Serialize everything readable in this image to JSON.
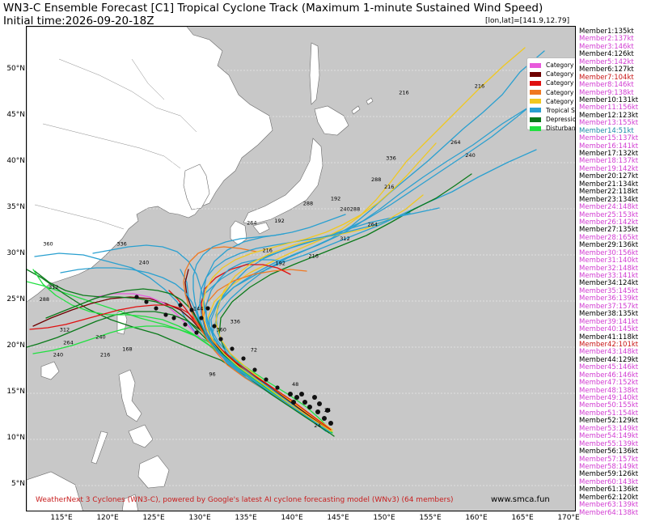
{
  "header": {
    "title": "WN3-C Ensemble Forecast [C1] Tropical Cyclone Track (Maximum 1-minute Sustained Wind Speed)",
    "initial_time": "Initial time:2026-09-20-18Z",
    "lonlat_readout": "[lon,lat]=[141.9,12.79]"
  },
  "axes": {
    "lat_labels": [
      "50°N",
      "45°N",
      "40°N",
      "35°N",
      "30°N",
      "25°N",
      "20°N",
      "15°N",
      "10°N",
      "5°N"
    ],
    "lon_labels": [
      "115°E",
      "120°E",
      "125°E",
      "130°E",
      "135°E",
      "140°E",
      "145°E",
      "150°E",
      "155°E",
      "160°E",
      "165°E",
      "170°E"
    ]
  },
  "legend": [
    {
      "label": "Category 5",
      "color": "#e85adc"
    },
    {
      "label": "Category 4",
      "color": "#6e0000"
    },
    {
      "label": "Category 3",
      "color": "#e01010"
    },
    {
      "label": "Category 2",
      "color": "#f07820"
    },
    {
      "label": "Category 1",
      "color": "#f0c820"
    },
    {
      "label": "Tropical Storm",
      "color": "#2aa0d0"
    },
    {
      "label": "Depression",
      "color": "#0a7a1a"
    },
    {
      "label": "Disturbance",
      "color": "#20e040"
    }
  ],
  "members": [
    {
      "label": "Member1:135kt",
      "color": "#000000"
    },
    {
      "label": "Member2:137kt",
      "color": "#d23cd2"
    },
    {
      "label": "Member3:146kt",
      "color": "#d23cd2"
    },
    {
      "label": "Member4:126kt",
      "color": "#000000"
    },
    {
      "label": "Member5:142kt",
      "color": "#d23cd2"
    },
    {
      "label": "Member6:127kt",
      "color": "#000000"
    },
    {
      "label": "Member7:104kt",
      "color": "#c81414"
    },
    {
      "label": "Member8:146kt",
      "color": "#d23cd2"
    },
    {
      "label": "Member9:138kt",
      "color": "#d23cd2"
    },
    {
      "label": "Member10:131kt",
      "color": "#000000"
    },
    {
      "label": "Member11:156kt",
      "color": "#d23cd2"
    },
    {
      "label": "Member12:123kt",
      "color": "#000000"
    },
    {
      "label": "Member13:155kt",
      "color": "#d23cd2"
    },
    {
      "label": "Member14:51kt",
      "color": "#1a8aa8"
    },
    {
      "label": "Member15:137kt",
      "color": "#d23cd2"
    },
    {
      "label": "Member16:141kt",
      "color": "#d23cd2"
    },
    {
      "label": "Member17:132kt",
      "color": "#000000"
    },
    {
      "label": "Member18:137kt",
      "color": "#d23cd2"
    },
    {
      "label": "Member19:142kt",
      "color": "#d23cd2"
    },
    {
      "label": "Member20:127kt",
      "color": "#000000"
    },
    {
      "label": "Member21:134kt",
      "color": "#000000"
    },
    {
      "label": "Member22:118kt",
      "color": "#000000"
    },
    {
      "label": "Member23:134kt",
      "color": "#000000"
    },
    {
      "label": "Member24:148kt",
      "color": "#d23cd2"
    },
    {
      "label": "Member25:153kt",
      "color": "#d23cd2"
    },
    {
      "label": "Member26:142kt",
      "color": "#d23cd2"
    },
    {
      "label": "Member27:135kt",
      "color": "#000000"
    },
    {
      "label": "Member28:165kt",
      "color": "#d23cd2"
    },
    {
      "label": "Member29:136kt",
      "color": "#000000"
    },
    {
      "label": "Member30:156kt",
      "color": "#d23cd2"
    },
    {
      "label": "Member31:140kt",
      "color": "#d23cd2"
    },
    {
      "label": "Member32:148kt",
      "color": "#d23cd2"
    },
    {
      "label": "Member33:141kt",
      "color": "#d23cd2"
    },
    {
      "label": "Member34:124kt",
      "color": "#000000"
    },
    {
      "label": "Member35:145kt",
      "color": "#d23cd2"
    },
    {
      "label": "Member36:139kt",
      "color": "#d23cd2"
    },
    {
      "label": "Member37:157kt",
      "color": "#d23cd2"
    },
    {
      "label": "Member38:135kt",
      "color": "#000000"
    },
    {
      "label": "Member39:141kt",
      "color": "#d23cd2"
    },
    {
      "label": "Member40:145kt",
      "color": "#d23cd2"
    },
    {
      "label": "Member41:118kt",
      "color": "#000000"
    },
    {
      "label": "Member42:101kt",
      "color": "#c81414"
    },
    {
      "label": "Member43:148kt",
      "color": "#d23cd2"
    },
    {
      "label": "Member44:129kt",
      "color": "#000000"
    },
    {
      "label": "Member45:146kt",
      "color": "#d23cd2"
    },
    {
      "label": "Member46:146kt",
      "color": "#d23cd2"
    },
    {
      "label": "Member47:152kt",
      "color": "#d23cd2"
    },
    {
      "label": "Member48:138kt",
      "color": "#d23cd2"
    },
    {
      "label": "Member49:140kt",
      "color": "#d23cd2"
    },
    {
      "label": "Member50:155kt",
      "color": "#d23cd2"
    },
    {
      "label": "Member51:154kt",
      "color": "#d23cd2"
    },
    {
      "label": "Member52:129kt",
      "color": "#000000"
    },
    {
      "label": "Member53:149kt",
      "color": "#d23cd2"
    },
    {
      "label": "Member54:149kt",
      "color": "#d23cd2"
    },
    {
      "label": "Member55:139kt",
      "color": "#d23cd2"
    },
    {
      "label": "Member56:136kt",
      "color": "#000000"
    },
    {
      "label": "Member57:157kt",
      "color": "#d23cd2"
    },
    {
      "label": "Member58:149kt",
      "color": "#d23cd2"
    },
    {
      "label": "Member59:126kt",
      "color": "#000000"
    },
    {
      "label": "Member60:143kt",
      "color": "#d23cd2"
    },
    {
      "label": "Member61:136kt",
      "color": "#000000"
    },
    {
      "label": "Member62:120kt",
      "color": "#000000"
    },
    {
      "label": "Member63:139kt",
      "color": "#d23cd2"
    },
    {
      "label": "Member64:138kt",
      "color": "#d23cd2"
    }
  ],
  "map": {
    "ocean_color": "#c8c8c8",
    "land_color": "#ffffff",
    "track_labels": [
      {
        "text": "216",
        "lon": 151.6,
        "lat": 47.4
      },
      {
        "text": "216",
        "lon": 159.8,
        "lat": 48.1
      },
      {
        "text": "264",
        "lon": 157.2,
        "lat": 42.0
      },
      {
        "text": "240",
        "lon": 158.8,
        "lat": 40.6
      },
      {
        "text": "336",
        "lon": 150.2,
        "lat": 40.3
      },
      {
        "text": "288",
        "lon": 148.6,
        "lat": 38.0
      },
      {
        "text": "216",
        "lon": 150.0,
        "lat": 37.2
      },
      {
        "text": "264",
        "lon": 148.2,
        "lat": 33.1
      },
      {
        "text": "192",
        "lon": 144.2,
        "lat": 35.9
      },
      {
        "text": "288",
        "lon": 141.2,
        "lat": 35.4
      },
      {
        "text": "240",
        "lon": 145.2,
        "lat": 34.8
      },
      {
        "text": "288",
        "lon": 146.3,
        "lat": 34.8
      },
      {
        "text": "264",
        "lon": 135.1,
        "lat": 33.3
      },
      {
        "text": "192",
        "lon": 138.1,
        "lat": 33.5
      },
      {
        "text": "312",
        "lon": 145.2,
        "lat": 31.6
      },
      {
        "text": "216",
        "lon": 141.8,
        "lat": 29.7
      },
      {
        "text": "192",
        "lon": 138.2,
        "lat": 28.9
      },
      {
        "text": "216",
        "lon": 136.8,
        "lat": 30.3
      },
      {
        "text": "336",
        "lon": 133.3,
        "lat": 22.6
      },
      {
        "text": "360",
        "lon": 131.8,
        "lat": 21.7
      },
      {
        "text": "144",
        "lon": 129.3,
        "lat": 24.0
      },
      {
        "text": "240",
        "lon": 123.4,
        "lat": 29.0
      },
      {
        "text": "312",
        "lon": 113.6,
        "lat": 26.3
      },
      {
        "text": "288",
        "lon": 112.6,
        "lat": 25.0
      },
      {
        "text": "360",
        "lon": 113.0,
        "lat": 31.0
      },
      {
        "text": "336",
        "lon": 121.0,
        "lat": 31.0
      },
      {
        "text": "264",
        "lon": 115.2,
        "lat": 20.3
      },
      {
        "text": "312",
        "lon": 114.8,
        "lat": 21.7
      },
      {
        "text": "240",
        "lon": 114.1,
        "lat": 19.0
      },
      {
        "text": "216",
        "lon": 119.2,
        "lat": 19.0
      },
      {
        "text": "168",
        "lon": 121.6,
        "lat": 19.6
      },
      {
        "text": "240",
        "lon": 118.7,
        "lat": 20.9
      },
      {
        "text": "72",
        "lon": 135.5,
        "lat": 19.5
      },
      {
        "text": "48",
        "lon": 140.0,
        "lat": 15.8
      },
      {
        "text": "24",
        "lon": 143.5,
        "lat": 13.0
      },
      {
        "text": "24",
        "lon": 142.4,
        "lat": 11.3
      },
      {
        "text": "96",
        "lon": 131.0,
        "lat": 16.9
      }
    ]
  }
}
